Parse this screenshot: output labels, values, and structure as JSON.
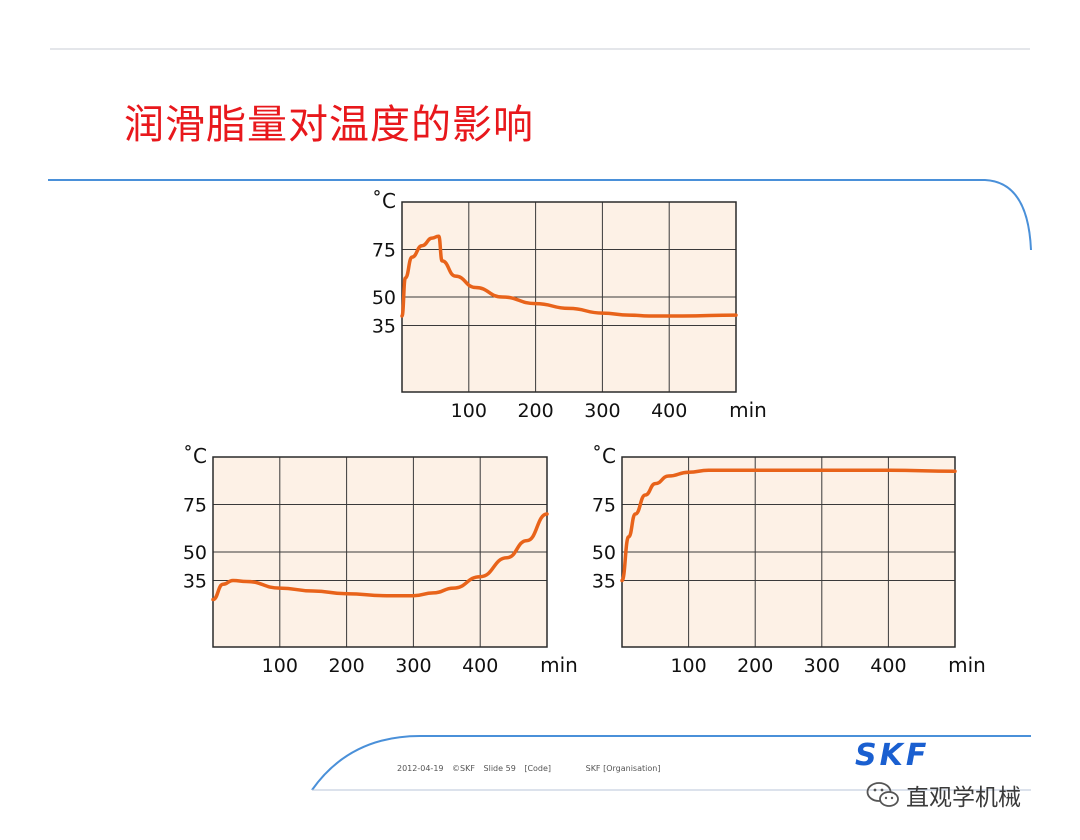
{
  "slide": {
    "title": "润滑脂量对温度的影响"
  },
  "footer": {
    "date": "2012-04-19",
    "copyright": "©SKF",
    "slide_no": "Slide 59",
    "code": "[Code]",
    "organisation": "SKF [Organisation]",
    "logo_text": "SKF",
    "watermark": "直观学机械",
    "brand_color": "#1a5fd0"
  },
  "chart_data": [
    {
      "type": "line",
      "title": "",
      "xlabel": "min",
      "ylabel": "˚C",
      "x_ticks": [
        100,
        200,
        300,
        400
      ],
      "y_ticks": [
        35,
        50,
        75
      ],
      "xlim": [
        0,
        500
      ],
      "ylim": [
        0,
        100
      ],
      "grid": true,
      "series": [
        {
          "color": "#e8631a",
          "x": [
            0,
            5,
            15,
            30,
            45,
            55,
            60,
            80,
            110,
            150,
            200,
            250,
            300,
            340,
            370,
            420,
            500
          ],
          "y": [
            40,
            60,
            71,
            77,
            81,
            82,
            69,
            61,
            55,
            50,
            46.5,
            44,
            41.5,
            40.5,
            40,
            40,
            40.5
          ]
        }
      ]
    },
    {
      "type": "line",
      "title": "",
      "xlabel": "min",
      "ylabel": "˚C",
      "x_ticks": [
        100,
        200,
        300,
        400
      ],
      "y_ticks": [
        35,
        50,
        75
      ],
      "xlim": [
        0,
        500
      ],
      "ylim": [
        0,
        100
      ],
      "grid": true,
      "series": [
        {
          "color": "#e8631a",
          "x": [
            0,
            15,
            30,
            50,
            100,
            150,
            200,
            260,
            300,
            330,
            360,
            400,
            440,
            470,
            500
          ],
          "y": [
            25,
            33,
            35,
            34.5,
            31,
            29.5,
            28,
            27,
            27,
            28.5,
            31,
            37,
            47,
            56,
            70
          ]
        }
      ]
    },
    {
      "type": "line",
      "title": "",
      "xlabel": "min",
      "ylabel": "˚C",
      "x_ticks": [
        100,
        200,
        300,
        400
      ],
      "y_ticks": [
        35,
        50,
        75
      ],
      "xlim": [
        0,
        500
      ],
      "ylim": [
        0,
        100
      ],
      "grid": true,
      "series": [
        {
          "color": "#e8631a",
          "x": [
            0,
            10,
            20,
            35,
            50,
            70,
            100,
            130,
            200,
            300,
            400,
            500
          ],
          "y": [
            35,
            58,
            70,
            80,
            86,
            90,
            92,
            93,
            93,
            93,
            93,
            92.5
          ]
        }
      ]
    }
  ]
}
